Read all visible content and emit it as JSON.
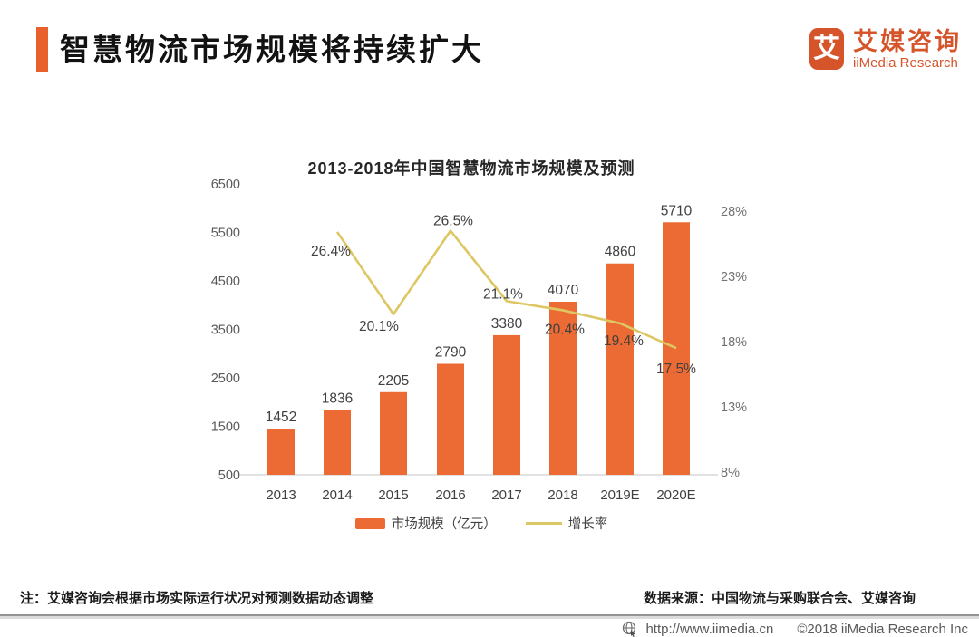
{
  "header": {
    "title": "智慧物流市场规模将持续扩大",
    "logo": {
      "glyph": "艾",
      "name_cn": "艾媒咨询",
      "name_en": "iiMedia Research"
    }
  },
  "chart_data": {
    "type": "bar",
    "combo": "bar+line",
    "title": "2013-2018年中国智慧物流市场规模及预测",
    "categories": [
      "2013",
      "2014",
      "2015",
      "2016",
      "2017",
      "2018",
      "2019E",
      "2020E"
    ],
    "series": [
      {
        "name": "市场规模（亿元）",
        "type": "bar",
        "axis": "left",
        "color": "#ec6a33",
        "values": [
          1452,
          1836,
          2205,
          2790,
          3380,
          4070,
          4860,
          5710
        ],
        "labels": [
          "1452",
          "1836",
          "2205",
          "2790",
          "3380",
          "4070",
          "4860",
          "5710"
        ]
      },
      {
        "name": "增长率",
        "type": "line",
        "axis": "right",
        "color": "#ddc763",
        "values": [
          null,
          26.4,
          20.1,
          26.5,
          21.1,
          20.4,
          19.4,
          17.5
        ],
        "labels": [
          null,
          "26.4%",
          "20.1%",
          "26.5%",
          "21.1%",
          "20.4%",
          "19.4%",
          "17.5%"
        ]
      }
    ],
    "left_axis": {
      "min": 500,
      "max": 6500,
      "ticks": [
        500,
        1500,
        2500,
        3500,
        4500,
        5500,
        6500
      ]
    },
    "right_axis": {
      "min": 8,
      "max": 28,
      "ticks": [
        8,
        13,
        18,
        23,
        28
      ],
      "tick_suffix": "%"
    },
    "grid": false,
    "legend_position": "bottom"
  },
  "footnotes": {
    "note": "注：艾媒咨询会根据市场实际运行状况对预测数据动态调整",
    "source": "数据来源：中国物流与采购联合会、艾媒咨询"
  },
  "footer": {
    "url": "http://www.iimedia.cn",
    "copyright": "©2018  iiMedia Research Inc"
  },
  "colors": {
    "accent": "#e8612c",
    "logo": "#d6542a",
    "bar": "#ec6a33",
    "line": "#ddc763",
    "axis_text": "#595959",
    "baseline": "#d9d9d9"
  }
}
